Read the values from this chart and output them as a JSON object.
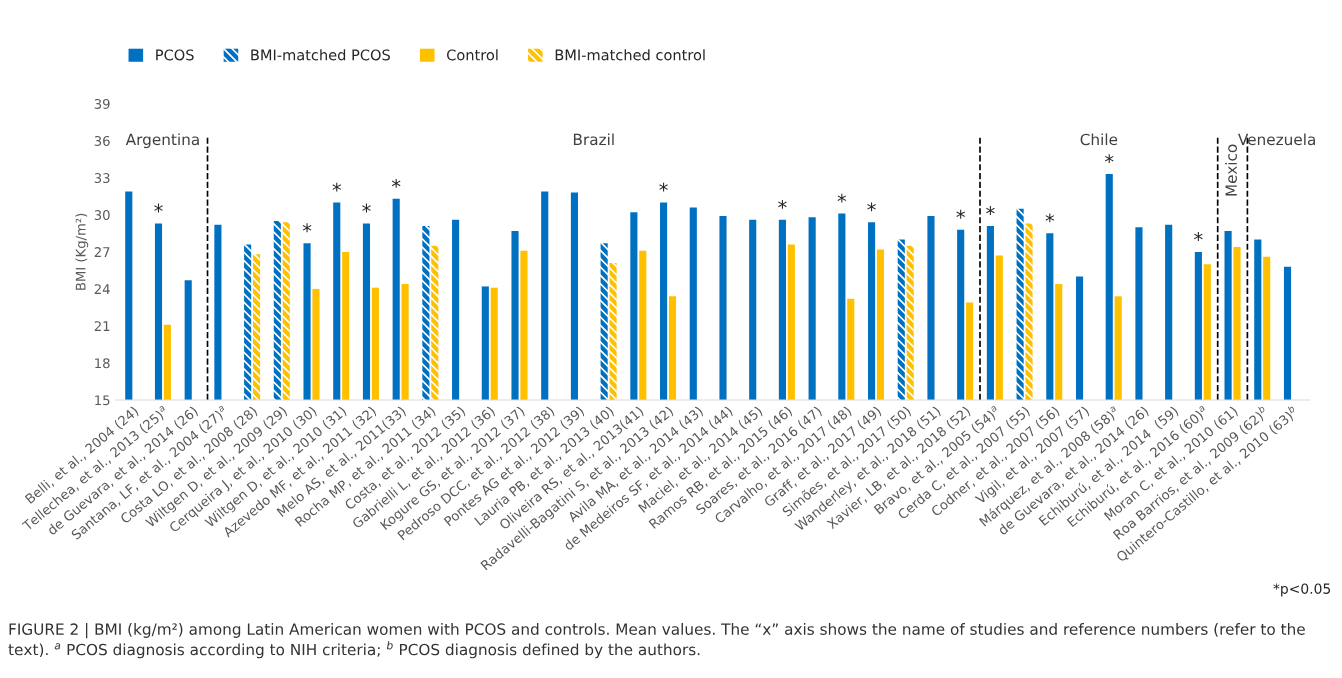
{
  "chart_data": {
    "type": "bar",
    "ylabel": "BMI (Kg/m²)",
    "categories": [
      "Belli, et al., 2004 (24)",
      "Tellechea, et al., 2013 (25)$^{a}$",
      "de Guevara, et al., 2014 (26)",
      "Santana, LF, et al., 2004 (27)$^{a}$",
      "Costa LO, et al., 2008 (28)",
      "Wiltgen D, et al., 2009 (29)",
      "Cerqueira J, et al., 2010 (30)",
      "Wiltgen D, et al., 2010 (31)",
      "Azevedo MF, et al., 2011 (32)",
      "Melo AS, et al., 2011(33)",
      "Rocha MP, et al., 2011 (34)",
      "Costa, et al., 2012 (35)",
      "Gabrielli L, et al., 2012 (36)",
      "Kogure GS, et al., 2012 (37)",
      "Pedroso DCC, et al., 2012 (38)",
      "Pontes AG et al., 2012 (39)",
      "Lauria PB, et al., 2013 (40)",
      "Oliveira RS, et al., 2013(41)",
      "Radavelli-Bagatini S, et al., 2013 (42)",
      "Avila MA, et al., 2014 (43)",
      "de Medeiros SF, et al., 2014 (44)",
      "Maciel, et al., 2014 (45)",
      "Ramos RB, et al., 2015 (46)",
      "Soares, et al., 2016 (47)",
      "Carvalho, et al., 2017 (48)",
      "Graff, et al., 2017 (49)",
      "Simões, et al., 2017 (50)",
      "Wanderley, et al., 2018 (51)",
      "Xavier, LB, et al., 2018 (52)",
      "Bravo, et al., 2005 (54)$^{a}$",
      "Cerda C, et al., 2007 (55)",
      "Codner, et al., 2007 (56)",
      "Vigil, et al., 2007 (57)",
      "Márquez, et al., 2008 (58)$^{a}$",
      "de Guevara, et al., 2014 (26)",
      "Echiburú, et al., 2014  (59)",
      "Echiburú, et al., 2016 (60)$^{a}$",
      "Moran C, et al., 2010 (61)",
      "Roa Barrios, et al., 2009 (62)$^{b}$",
      "Quintero-Castillo, et al., 2010 (63)$^{b}$"
    ],
    "series": [
      {
        "name": "PCOS",
        "color": "#0070c0",
        "values": [
          31.9,
          29.3,
          24.7,
          29.2,
          null,
          null,
          27.7,
          31.0,
          29.3,
          31.3,
          null,
          29.6,
          24.2,
          28.7,
          31.9,
          31.8,
          null,
          30.2,
          31.0,
          30.6,
          29.9,
          29.6,
          29.6,
          29.8,
          30.1,
          29.4,
          null,
          29.9,
          28.8,
          29.1,
          null,
          28.5,
          25.0,
          33.3,
          29.0,
          29.2,
          27.0,
          28.7,
          28.0,
          25.8
        ]
      },
      {
        "name": "BMI-matched PCOS",
        "color": "#0070c0",
        "values": [
          null,
          null,
          null,
          null,
          27.6,
          29.5,
          null,
          null,
          null,
          null,
          29.1,
          null,
          null,
          null,
          null,
          null,
          27.7,
          null,
          null,
          null,
          null,
          null,
          null,
          null,
          null,
          null,
          28.0,
          null,
          null,
          null,
          30.5,
          null,
          null,
          null,
          null,
          null,
          null,
          null,
          null,
          null
        ]
      },
      {
        "name": "Control",
        "color": "#ffc000",
        "values": [
          null,
          21.1,
          null,
          null,
          null,
          null,
          24.0,
          27.0,
          24.1,
          24.4,
          null,
          null,
          24.1,
          27.1,
          null,
          null,
          null,
          27.1,
          23.4,
          null,
          null,
          null,
          27.6,
          null,
          23.2,
          27.2,
          null,
          null,
          22.9,
          26.7,
          null,
          24.4,
          null,
          23.4,
          null,
          null,
          26.0,
          27.4,
          26.6,
          null
        ]
      },
      {
        "name": "BMI-matched control",
        "color": "#ffc000",
        "values": [
          null,
          null,
          null,
          null,
          26.8,
          29.4,
          null,
          null,
          null,
          null,
          27.5,
          null,
          null,
          null,
          null,
          null,
          26.1,
          null,
          null,
          null,
          null,
          null,
          null,
          null,
          null,
          null,
          27.5,
          null,
          null,
          null,
          29.3,
          null,
          null,
          null,
          null,
          null,
          null,
          null,
          null,
          null
        ]
      }
    ],
    "ylim": [
      15,
      39
    ],
    "yticks": [
      15,
      18,
      21,
      24,
      27,
      30,
      33,
      36,
      39
    ],
    "legend": "top left",
    "annotations": [
      "Argentina",
      "Brazil",
      "Chile",
      "Mexico",
      "Venezuela",
      {
        "text": "*",
        "x": "Tellechea, et al., 2013 (25)$^{a}$",
        "y": 29.3
      },
      {
        "text": "*",
        "x": "Cerqueira J, et al., 2010 (30)",
        "y": 27.7
      },
      {
        "text": "*",
        "x": "Wiltgen D, et al., 2010 (31)",
        "y": 31.0
      },
      {
        "text": "*",
        "x": "Azevedo MF, et al., 2011 (32)",
        "y": 29.3
      },
      {
        "text": "*",
        "x": "Melo AS, et al., 2011(33)",
        "y": 31.3
      },
      {
        "text": "*",
        "x": "Radavelli-Bagatini S, et al., 2013 (42)",
        "y": 31.0
      },
      {
        "text": "*",
        "x": "Ramos RB, et al., 2015 (46)",
        "y": 29.6
      },
      {
        "text": "*",
        "x": "Carvalho, et al., 2017 (48)",
        "y": 30.1
      },
      {
        "text": "*",
        "x": "Graff, et al., 2017 (49)",
        "y": 29.4
      },
      {
        "text": "*",
        "x": "Xavier, LB, et al., 2018 (52)",
        "y": 28.8
      },
      {
        "text": "*",
        "x": "Bravo, et al., 2005 (54)$^{a}$",
        "y": 29.1
      },
      {
        "text": "*",
        "x": "Codner, et al., 2007 (56)",
        "y": 28.5
      },
      {
        "text": "*",
        "x": "Márquez, et al., 2008 (58)$^{a}$",
        "y": 33.3
      },
      {
        "text": "*",
        "x": "Echiburú, et al., 2016 (60)$^{a}$",
        "y": 27.0
      },
      "*p<0.05",
      "FIGURE 2 | BMI (kg/m²) among Latin American women with PCOS and controls. Mean values. The “x” axis shows the name of studies and reference numbers (refer to the text). $^{a}$ PCOS diagnosis according to NIH criteria; $^{b}$ PCOS diagnosis defined by the authors."
    ]
  }
}
